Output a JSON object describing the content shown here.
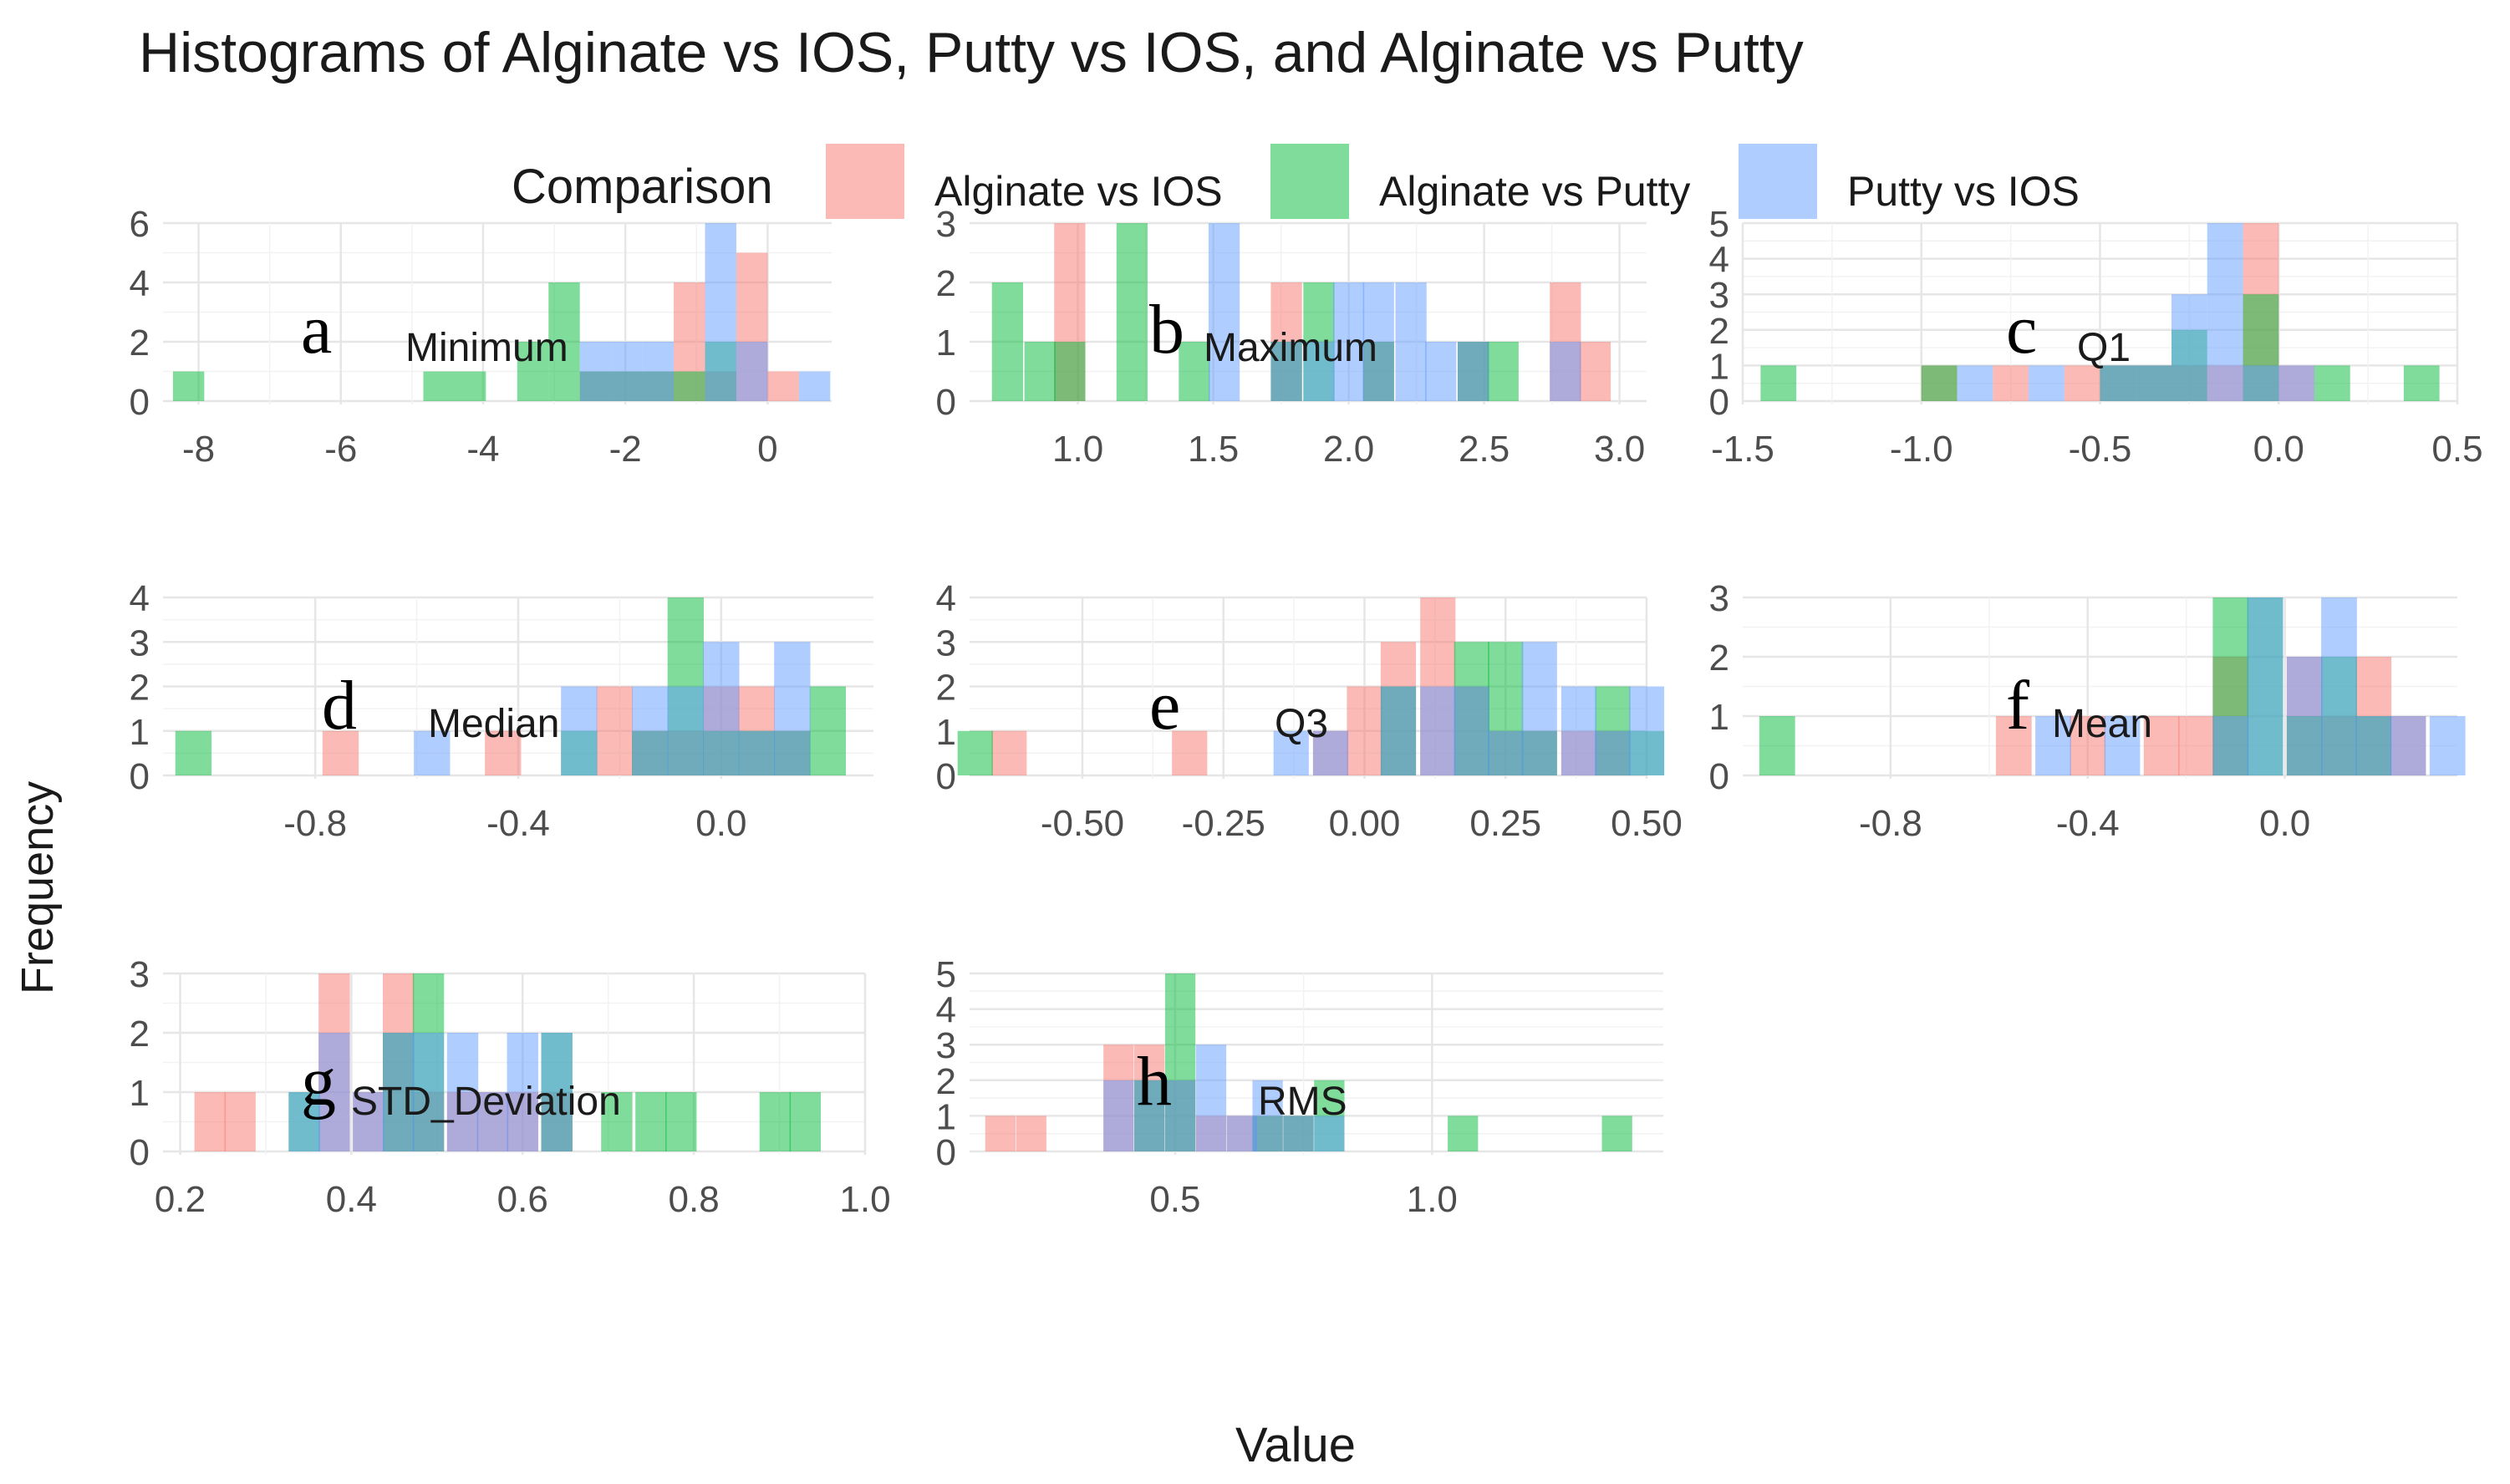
{
  "title": "Histograms of Alginate vs IOS, Putty vs IOS, and Alginate vs Putty",
  "legend": {
    "title": "Comparison",
    "items": [
      {
        "label": "Alginate vs IOS",
        "color": "#F8766D"
      },
      {
        "label": "Alginate vs Putty",
        "color": "#00BA38"
      },
      {
        "label": "Putty vs IOS",
        "color": "#619CFF"
      }
    ]
  },
  "axes": {
    "xlabel": "Value",
    "ylabel": "Frequency"
  },
  "chart_data": [
    {
      "type": "bar",
      "panel": "a",
      "title": "Minimum",
      "xlim": [
        -8.5,
        0.9
      ],
      "ylim": [
        0,
        6
      ],
      "xticks": [
        -8,
        -6,
        -4,
        -2,
        0
      ],
      "yticks": [
        0,
        2,
        4,
        6
      ],
      "binwidth": 0.44,
      "series": [
        {
          "name": "Alginate vs IOS",
          "bins": [
            [
              -2.42,
              1
            ],
            [
              -1.98,
              1
            ],
            [
              -1.54,
              1
            ],
            [
              -1.1,
              4
            ],
            [
              -0.66,
              1
            ],
            [
              -0.22,
              5
            ],
            [
              0.22,
              1
            ]
          ]
        },
        {
          "name": "Alginate vs Putty",
          "bins": [
            [
              -8.14,
              1
            ],
            [
              -4.62,
              1
            ],
            [
              -4.18,
              1
            ],
            [
              -3.3,
              2
            ],
            [
              -2.86,
              4
            ],
            [
              -2.42,
              1
            ],
            [
              -1.98,
              1
            ],
            [
              -1.54,
              1
            ],
            [
              -1.1,
              1
            ],
            [
              -0.66,
              2
            ]
          ]
        },
        {
          "name": "Putty vs IOS",
          "bins": [
            [
              -2.42,
              2
            ],
            [
              -1.98,
              2
            ],
            [
              -1.54,
              2
            ],
            [
              -0.66,
              6
            ],
            [
              -0.22,
              2
            ],
            [
              0.66,
              1
            ]
          ]
        }
      ]
    },
    {
      "type": "bar",
      "panel": "b",
      "title": "Maximum",
      "xlim": [
        0.6,
        3.1
      ],
      "ylim": [
        0,
        3
      ],
      "xticks": [
        1.0,
        1.5,
        2.0,
        2.5,
        3.0
      ],
      "yticks": [
        0,
        1,
        2,
        3
      ],
      "binwidth": 0.115,
      "series": [
        {
          "name": "Alginate vs IOS",
          "bins": [
            [
              0.97,
              3
            ],
            [
              1.77,
              2
            ],
            [
              2.11,
              1
            ],
            [
              2.46,
              1
            ],
            [
              2.8,
              2
            ],
            [
              2.91,
              1
            ]
          ]
        },
        {
          "name": "Alginate vs Putty",
          "bins": [
            [
              0.74,
              2
            ],
            [
              0.86,
              1
            ],
            [
              0.97,
              1
            ],
            [
              1.2,
              3
            ],
            [
              1.43,
              1
            ],
            [
              1.77,
              1
            ],
            [
              1.89,
              2
            ],
            [
              2.11,
              1
            ],
            [
              2.46,
              1
            ],
            [
              2.57,
              1
            ]
          ]
        },
        {
          "name": "Putty vs IOS",
          "bins": [
            [
              1.54,
              3
            ],
            [
              1.77,
              1
            ],
            [
              1.89,
              1
            ],
            [
              2.0,
              2
            ],
            [
              2.11,
              2
            ],
            [
              2.23,
              2
            ],
            [
              2.34,
              1
            ],
            [
              2.46,
              1
            ],
            [
              2.8,
              1
            ]
          ]
        }
      ]
    },
    {
      "type": "bar",
      "panel": "c",
      "title": "Q1",
      "xlim": [
        -1.5,
        0.5
      ],
      "ylim": [
        0,
        5
      ],
      "xticks": [
        -1.5,
        -1.0,
        -0.5,
        0.0,
        0.5
      ],
      "yticks": [
        0,
        1,
        2,
        3,
        4,
        5
      ],
      "binwidth": 0.1,
      "series": [
        {
          "name": "Alginate vs IOS",
          "bins": [
            [
              -0.95,
              1
            ],
            [
              -0.75,
              1
            ],
            [
              -0.55,
              1
            ],
            [
              -0.45,
              1
            ],
            [
              -0.35,
              1
            ],
            [
              -0.25,
              1
            ],
            [
              -0.15,
              1
            ],
            [
              -0.05,
              5
            ],
            [
              0.05,
              1
            ]
          ]
        },
        {
          "name": "Alginate vs Putty",
          "bins": [
            [
              -1.4,
              1
            ],
            [
              -0.95,
              1
            ],
            [
              -0.45,
              1
            ],
            [
              -0.35,
              1
            ],
            [
              -0.25,
              2
            ],
            [
              -0.05,
              3
            ],
            [
              0.15,
              1
            ],
            [
              0.4,
              1
            ]
          ]
        },
        {
          "name": "Putty vs IOS",
          "bins": [
            [
              -0.85,
              1
            ],
            [
              -0.65,
              1
            ],
            [
              -0.45,
              1
            ],
            [
              -0.35,
              1
            ],
            [
              -0.25,
              3
            ],
            [
              -0.15,
              5
            ],
            [
              -0.05,
              1
            ],
            [
              0.05,
              1
            ]
          ]
        }
      ]
    },
    {
      "type": "bar",
      "panel": "d",
      "title": "Median",
      "xlim": [
        -1.1,
        0.3
      ],
      "ylim": [
        0,
        4
      ],
      "xticks": [
        -0.8,
        -0.4,
        0.0
      ],
      "yticks": [
        0,
        1,
        2,
        3,
        4
      ],
      "binwidth": 0.0714,
      "series": [
        {
          "name": "Alginate vs IOS",
          "bins": [
            [
              -0.75,
              1
            ],
            [
              -0.43,
              1
            ],
            [
              -0.21,
              2
            ],
            [
              -0.14,
              1
            ],
            [
              -0.07,
              1
            ],
            [
              0.0,
              2
            ],
            [
              0.07,
              2
            ],
            [
              0.14,
              1
            ]
          ]
        },
        {
          "name": "Alginate vs Putty",
          "bins": [
            [
              -1.04,
              1
            ],
            [
              -0.28,
              1
            ],
            [
              -0.14,
              1
            ],
            [
              -0.07,
              4
            ],
            [
              0.0,
              1
            ],
            [
              0.07,
              1
            ],
            [
              0.14,
              1
            ],
            [
              0.21,
              2
            ]
          ]
        },
        {
          "name": "Putty vs IOS",
          "bins": [
            [
              -0.57,
              1
            ],
            [
              -0.28,
              2
            ],
            [
              -0.14,
              2
            ],
            [
              -0.07,
              2
            ],
            [
              0.0,
              3
            ],
            [
              0.07,
              1
            ],
            [
              0.14,
              3
            ]
          ]
        }
      ]
    },
    {
      "type": "bar",
      "panel": "e",
      "title": "Q3",
      "xlim": [
        -0.7,
        0.5
      ],
      "ylim": [
        0,
        4
      ],
      "xticks": [
        -0.5,
        -0.25,
        0.0,
        0.25,
        0.5
      ],
      "yticks": [
        0,
        1,
        2,
        3,
        4
      ],
      "binwidth": 0.0625,
      "series": [
        {
          "name": "Alginate vs IOS",
          "bins": [
            [
              -0.63,
              1
            ],
            [
              -0.31,
              1
            ],
            [
              -0.06,
              1
            ],
            [
              0.0,
              2
            ],
            [
              0.06,
              3
            ],
            [
              0.13,
              4
            ],
            [
              0.19,
              2
            ],
            [
              0.25,
              1
            ],
            [
              0.31,
              1
            ],
            [
              0.38,
              1
            ],
            [
              0.44,
              1
            ]
          ]
        },
        {
          "name": "Alginate vs Putty",
          "bins": [
            [
              -0.69,
              1
            ],
            [
              0.06,
              2
            ],
            [
              0.19,
              3
            ],
            [
              0.25,
              3
            ],
            [
              0.31,
              1
            ],
            [
              0.44,
              2
            ],
            [
              0.5,
              1
            ]
          ]
        },
        {
          "name": "Putty vs IOS",
          "bins": [
            [
              -0.13,
              1
            ],
            [
              -0.06,
              1
            ],
            [
              0.06,
              2
            ],
            [
              0.13,
              2
            ],
            [
              0.19,
              2
            ],
            [
              0.25,
              1
            ],
            [
              0.31,
              3
            ],
            [
              0.38,
              2
            ],
            [
              0.44,
              1
            ],
            [
              0.5,
              2
            ]
          ]
        }
      ]
    },
    {
      "type": "bar",
      "panel": "f",
      "title": "Mean",
      "xlim": [
        -1.1,
        0.35
      ],
      "ylim": [
        0,
        3
      ],
      "xticks": [
        -0.8,
        -0.4,
        0.0
      ],
      "yticks": [
        0,
        1,
        2,
        3
      ],
      "binwidth": 0.0725,
      "series": [
        {
          "name": "Alginate vs IOS",
          "bins": [
            [
              -0.55,
              1
            ],
            [
              -0.4,
              1
            ],
            [
              -0.25,
              1
            ],
            [
              -0.18,
              1
            ],
            [
              -0.11,
              2
            ],
            [
              0.04,
              2
            ],
            [
              0.11,
              1
            ],
            [
              0.18,
              2
            ],
            [
              0.25,
              1
            ]
          ]
        },
        {
          "name": "Alginate vs Putty",
          "bins": [
            [
              -1.03,
              1
            ],
            [
              -0.11,
              3
            ],
            [
              -0.04,
              3
            ],
            [
              0.04,
              1
            ],
            [
              0.11,
              2
            ],
            [
              0.18,
              1
            ]
          ]
        },
        {
          "name": "Putty vs IOS",
          "bins": [
            [
              -0.47,
              1
            ],
            [
              -0.33,
              1
            ],
            [
              -0.11,
              1
            ],
            [
              -0.04,
              3
            ],
            [
              0.04,
              2
            ],
            [
              0.11,
              3
            ],
            [
              0.18,
              1
            ],
            [
              0.25,
              1
            ],
            [
              0.33,
              1
            ]
          ]
        }
      ]
    },
    {
      "type": "bar",
      "panel": "g",
      "title": "STD_Deviation",
      "xlim": [
        0.18,
        1.0
      ],
      "ylim": [
        0,
        3
      ],
      "xticks": [
        0.2,
        0.4,
        0.6,
        0.8,
        1.0
      ],
      "yticks": [
        0,
        1,
        2,
        3
      ],
      "binwidth": 0.0365,
      "series": [
        {
          "name": "Alginate vs IOS",
          "bins": [
            [
              0.235,
              1
            ],
            [
              0.27,
              1
            ],
            [
              0.38,
              3
            ],
            [
              0.42,
              1
            ],
            [
              0.455,
              3
            ],
            [
              0.49,
              1
            ],
            [
              0.53,
              1
            ],
            [
              0.565,
              1
            ],
            [
              0.6,
              1
            ],
            [
              0.64,
              1
            ]
          ]
        },
        {
          "name": "Alginate vs Putty",
          "bins": [
            [
              0.345,
              1
            ],
            [
              0.455,
              2
            ],
            [
              0.49,
              3
            ],
            [
              0.64,
              2
            ],
            [
              0.71,
              1
            ],
            [
              0.75,
              1
            ],
            [
              0.785,
              1
            ],
            [
              0.895,
              1
            ],
            [
              0.93,
              1
            ]
          ]
        },
        {
          "name": "Putty vs IOS",
          "bins": [
            [
              0.345,
              1
            ],
            [
              0.38,
              2
            ],
            [
              0.42,
              1
            ],
            [
              0.455,
              2
            ],
            [
              0.49,
              2
            ],
            [
              0.53,
              2
            ],
            [
              0.565,
              1
            ],
            [
              0.6,
              2
            ],
            [
              0.64,
              2
            ]
          ]
        }
      ]
    },
    {
      "type": "bar",
      "panel": "h",
      "title": "RMS",
      "xlim": [
        0.1,
        1.45
      ],
      "ylim": [
        0,
        5
      ],
      "xticks": [
        0.5,
        1.0
      ],
      "yticks": [
        0,
        1,
        2,
        3,
        4,
        5
      ],
      "binwidth": 0.059,
      "series": [
        {
          "name": "Alginate vs IOS",
          "bins": [
            [
              0.16,
              1
            ],
            [
              0.22,
              1
            ],
            [
              0.39,
              3
            ],
            [
              0.45,
              3
            ],
            [
              0.51,
              2
            ],
            [
              0.57,
              1
            ],
            [
              0.63,
              1
            ],
            [
              0.68,
              1
            ],
            [
              0.74,
              1
            ]
          ]
        },
        {
          "name": "Alginate vs Putty",
          "bins": [
            [
              0.45,
              2
            ],
            [
              0.51,
              5
            ],
            [
              0.68,
              1
            ],
            [
              0.74,
              1
            ],
            [
              0.8,
              2
            ],
            [
              1.06,
              1
            ],
            [
              1.36,
              1
            ]
          ]
        },
        {
          "name": "Putty vs IOS",
          "bins": [
            [
              0.39,
              2
            ],
            [
              0.45,
              2
            ],
            [
              0.51,
              2
            ],
            [
              0.57,
              3
            ],
            [
              0.63,
              1
            ],
            [
              0.68,
              2
            ],
            [
              0.74,
              1
            ],
            [
              0.8,
              1
            ]
          ]
        }
      ]
    }
  ]
}
